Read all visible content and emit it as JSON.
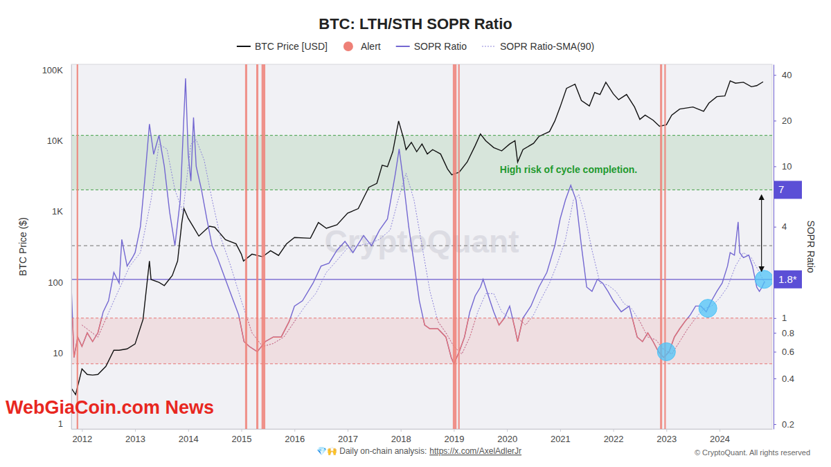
{
  "chart_data": {
    "type": "line",
    "title": "BTC: LTH/STH SOPR Ratio",
    "y_label": "BTC Price ($)",
    "y2_label": "SOPR Ratio",
    "log": "y",
    "grid": false,
    "legend": "top",
    "xlim": [
      2011.8,
      2024.99
    ],
    "xticks": [
      2012,
      2013,
      2014,
      2015,
      2016,
      2017,
      2018,
      2019,
      2020,
      2021,
      2022,
      2023,
      2024
    ],
    "ylim": [
      0.85,
      120000
    ],
    "yticks": [
      1,
      10,
      100,
      {
        "value": 1000,
        "label": "1K"
      },
      {
        "value": 10000,
        "label": "10K"
      },
      {
        "value": 100000,
        "label": "100K"
      }
    ],
    "y2lim": [
      0.186,
      47
    ],
    "y2ticks": [
      0.2,
      0.4,
      0.6,
      0.8,
      1,
      4,
      10,
      20,
      40
    ],
    "series": [
      {
        "name": "BTC Price [USD]",
        "type": "line",
        "color": "#111111",
        "x": [
          2011.8,
          2011.88,
          2011.95,
          2012.0,
          2012.1,
          2012.2,
          2012.3,
          2012.45,
          2012.6,
          2012.7,
          2012.85,
          2013.0,
          2013.15,
          2013.27,
          2013.3,
          2013.45,
          2013.55,
          2013.7,
          2013.8,
          2013.88,
          2013.92,
          2014.0,
          2014.1,
          2014.2,
          2014.4,
          2014.5,
          2014.7,
          2014.9,
          2015.0,
          2015.04,
          2015.2,
          2015.4,
          2015.55,
          2015.7,
          2015.85,
          2016.0,
          2016.3,
          2016.45,
          2016.6,
          2016.8,
          2017.0,
          2017.2,
          2017.4,
          2017.55,
          2017.65,
          2017.75,
          2017.85,
          2017.96,
          2018.05,
          2018.1,
          2018.2,
          2018.3,
          2018.4,
          2018.5,
          2018.6,
          2018.75,
          2018.88,
          2018.96,
          2019.1,
          2019.25,
          2019.4,
          2019.5,
          2019.6,
          2019.75,
          2019.9,
          2020.05,
          2020.15,
          2020.2,
          2020.3,
          2020.5,
          2020.6,
          2020.8,
          2020.9,
          2021.0,
          2021.12,
          2021.28,
          2021.4,
          2021.55,
          2021.65,
          2021.75,
          2021.86,
          2022.0,
          2022.1,
          2022.25,
          2022.4,
          2022.5,
          2022.6,
          2022.75,
          2022.87,
          2023.0,
          2023.1,
          2023.25,
          2023.5,
          2023.7,
          2023.8,
          2023.95,
          2024.1,
          2024.2,
          2024.3,
          2024.45,
          2024.6,
          2024.7,
          2024.82
        ],
        "values": [
          3.2,
          2.6,
          4.2,
          6,
          5,
          4.9,
          5,
          6.5,
          11,
          11,
          11.5,
          13.5,
          30,
          200,
          110,
          100,
          90,
          125,
          200,
          700,
          1100,
          800,
          600,
          450,
          620,
          600,
          400,
          350,
          250,
          200,
          250,
          230,
          280,
          240,
          350,
          430,
          420,
          700,
          580,
          650,
          950,
          1100,
          2200,
          2500,
          4500,
          4300,
          7000,
          19000,
          11000,
          7500,
          9500,
          7000,
          9000,
          6500,
          7500,
          6500,
          4000,
          3300,
          3600,
          5000,
          8500,
          12500,
          10000,
          8000,
          7200,
          9000,
          10000,
          5000,
          7500,
          9200,
          11500,
          13500,
          19000,
          30000,
          55000,
          63000,
          37000,
          31000,
          48000,
          45000,
          67000,
          46000,
          38000,
          45000,
          30000,
          20000,
          23000,
          19500,
          16000,
          16800,
          23000,
          28000,
          30000,
          26000,
          34000,
          42000,
          43000,
          70000,
          65000,
          67000,
          58000,
          60000,
          68000
        ]
      },
      {
        "name": "Alert",
        "type": "span",
        "color": "#ee8077",
        "marker": "circle",
        "spans": [
          [
            2011.9,
            2011.93
          ],
          [
            2015.07,
            2015.11
          ],
          [
            2015.28,
            2015.32
          ],
          [
            2015.38,
            2015.45
          ],
          [
            2018.98,
            2019.05
          ],
          [
            2019.08,
            2019.11
          ],
          [
            2022.88,
            2022.92
          ],
          [
            2022.96,
            2022.99
          ]
        ]
      },
      {
        "name": "SOPR Ratio",
        "type": "line",
        "color": "#7367d1",
        "axis": "y2",
        "x": [
          2011.8,
          2011.85,
          2011.92,
          2012.0,
          2012.1,
          2012.2,
          2012.3,
          2012.4,
          2012.5,
          2012.6,
          2012.7,
          2012.75,
          2012.85,
          2012.95,
          2013.0,
          2013.1,
          2013.18,
          2013.27,
          2013.35,
          2013.45,
          2013.55,
          2013.65,
          2013.75,
          2013.85,
          2013.95,
          2014.0,
          2014.05,
          2014.1,
          2014.15,
          2014.25,
          2014.35,
          2014.45,
          2014.55,
          2014.7,
          2014.85,
          2014.95,
          2015.05,
          2015.15,
          2015.3,
          2015.45,
          2015.6,
          2015.75,
          2015.9,
          2016.0,
          2016.15,
          2016.35,
          2016.5,
          2016.65,
          2016.8,
          2016.95,
          2017.1,
          2017.3,
          2017.45,
          2017.6,
          2017.75,
          2017.9,
          2017.97,
          2018.05,
          2018.15,
          2018.25,
          2018.35,
          2018.45,
          2018.55,
          2018.7,
          2018.85,
          2018.95,
          2019.0,
          2019.1,
          2019.2,
          2019.3,
          2019.4,
          2019.5,
          2019.55,
          2019.65,
          2019.75,
          2019.85,
          2019.95,
          2020.05,
          2020.15,
          2020.2,
          2020.3,
          2020.45,
          2020.6,
          2020.75,
          2020.9,
          2021.0,
          2021.1,
          2021.2,
          2021.3,
          2021.4,
          2021.5,
          2021.6,
          2021.7,
          2021.8,
          2021.9,
          2022.0,
          2022.15,
          2022.3,
          2022.45,
          2022.55,
          2022.65,
          2022.75,
          2022.85,
          2022.95,
          2023.05,
          2023.15,
          2023.25,
          2023.35,
          2023.45,
          2023.55,
          2023.65,
          2023.75,
          2023.85,
          2023.95,
          2024.05,
          2024.15,
          2024.2,
          2024.28,
          2024.35,
          2024.38,
          2024.45,
          2024.55,
          2024.62,
          2024.7,
          2024.75,
          2024.8,
          2024.85
        ],
        "values": [
          1.6,
          0.55,
          0.75,
          0.65,
          0.8,
          0.7,
          0.8,
          1.1,
          1.3,
          2.0,
          1.7,
          3.3,
          2.2,
          2.5,
          2.7,
          4.0,
          8,
          19,
          12,
          16,
          10,
          5,
          3,
          6,
          38,
          12,
          8,
          21,
          10,
          7,
          4.5,
          3,
          2.5,
          1.8,
          1.3,
          1.05,
          0.7,
          0.65,
          0.6,
          0.7,
          0.75,
          0.75,
          0.95,
          1.2,
          1.3,
          1.7,
          2.2,
          2.3,
          2.8,
          3.2,
          2.7,
          3.5,
          3.0,
          3.8,
          4.5,
          9,
          13,
          8,
          4,
          2.3,
          1.3,
          0.9,
          0.85,
          0.85,
          0.75,
          0.55,
          0.5,
          0.6,
          0.75,
          1.1,
          1.4,
          1.6,
          1.8,
          1.4,
          1.1,
          0.9,
          1.0,
          1.2,
          0.85,
          0.7,
          1.0,
          1.2,
          1.6,
          2.0,
          3.0,
          4.5,
          6,
          7.5,
          6,
          3,
          1.6,
          1.5,
          1.8,
          1.7,
          1.5,
          1.3,
          1.1,
          1.2,
          0.75,
          0.7,
          0.8,
          0.7,
          0.6,
          0.55,
          0.6,
          0.75,
          0.85,
          0.95,
          1.05,
          1.2,
          1.2,
          1.1,
          1.3,
          1.5,
          1.7,
          2.2,
          2.7,
          2.6,
          4.3,
          2.7,
          2.5,
          2.6,
          2.2,
          1.6,
          1.5,
          1.6,
          1.75
        ]
      },
      {
        "name": "SOPR Ratio-SMA(90)",
        "type": "line",
        "color": "#8b82d9",
        "line_style": "dotted",
        "axis": "y2",
        "x": [
          2012.0,
          2012.3,
          2012.6,
          2012.9,
          2013.1,
          2013.3,
          2013.45,
          2013.6,
          2013.75,
          2013.9,
          2014.05,
          2014.15,
          2014.3,
          2014.45,
          2014.6,
          2014.8,
          2015.0,
          2015.2,
          2015.4,
          2015.6,
          2015.8,
          2016.0,
          2016.2,
          2016.4,
          2016.6,
          2016.8,
          2017.0,
          2017.2,
          2017.4,
          2017.6,
          2017.8,
          2017.95,
          2018.1,
          2018.25,
          2018.4,
          2018.55,
          2018.7,
          2018.85,
          2019.0,
          2019.15,
          2019.3,
          2019.45,
          2019.6,
          2019.75,
          2019.9,
          2020.05,
          2020.2,
          2020.35,
          2020.5,
          2020.65,
          2020.8,
          2020.95,
          2021.1,
          2021.25,
          2021.35,
          2021.45,
          2021.6,
          2021.75,
          2021.9,
          2022.05,
          2022.2,
          2022.35,
          2022.5,
          2022.65,
          2022.8,
          2022.95,
          2023.1,
          2023.25,
          2023.4,
          2023.55,
          2023.7,
          2023.85,
          2024.0,
          2024.15,
          2024.3,
          2024.45,
          2024.6,
          2024.75,
          2024.85
        ],
        "values": [
          0.9,
          0.75,
          1.3,
          2.2,
          2.7,
          6,
          14,
          13,
          7,
          5,
          14,
          15,
          11,
          6,
          3.5,
          2.2,
          1.3,
          0.8,
          0.65,
          0.68,
          0.75,
          0.95,
          1.2,
          1.45,
          2.0,
          2.4,
          2.9,
          3.0,
          3.1,
          3.3,
          3.8,
          6,
          9,
          6,
          3,
          1.5,
          0.95,
          0.8,
          0.65,
          0.58,
          0.75,
          1.1,
          1.45,
          1.45,
          1.1,
          1.0,
          1.0,
          0.9,
          1.05,
          1.35,
          1.7,
          2.3,
          3.3,
          6,
          6.5,
          5,
          2.8,
          1.7,
          1.65,
          1.5,
          1.25,
          1.15,
          0.95,
          0.75,
          0.72,
          0.62,
          0.58,
          0.7,
          0.85,
          1.0,
          1.15,
          1.2,
          1.35,
          1.6,
          2.2,
          2.7,
          2.5,
          2.0,
          1.7
        ]
      },
      {
        "type": "scatter",
        "color": "#4fc3f7",
        "marker": "circle",
        "axis": "y2",
        "x": [
          2023.0,
          2023.78,
          2024.84
        ],
        "values": [
          0.6,
          1.16,
          1.8
        ]
      }
    ],
    "bands": [
      {
        "from": 0.5,
        "to": 1,
        "color": "#e57373",
        "axis": "y2"
      },
      {
        "from": 7,
        "to": 16,
        "color": "#43a047",
        "axis": "y2"
      }
    ],
    "hlines": [
      {
        "value": 3,
        "color": "#8a8a8a",
        "line_style": "dashed",
        "axis": "y2"
      },
      {
        "value": 1.8,
        "color": "#6a5acd",
        "line_style": "solid",
        "axis": "y2"
      }
    ],
    "axis_labels": [
      {
        "value": 7,
        "label": "7",
        "color": "#5b4fd6"
      },
      {
        "value": 1.8,
        "label": "1.8*",
        "color": "#5b4fd6"
      }
    ],
    "arrow": {
      "x": 2024.79,
      "from": 1.8,
      "to": 7,
      "axis": "y2"
    },
    "annotations": [
      {
        "text": "High risk of cycle completion.",
        "color": "#1f9a2e"
      }
    ],
    "watermark": "CryptoQuant",
    "footer": {
      "text": "💎🙌 Daily on-chain analysis:",
      "link": "https://x.com/AxelAdlerJr"
    },
    "copyright": "© CryptoQuant. All rights reserved",
    "overlay": {
      "text": "WebGiaCoin.com News",
      "color": "#e8271f"
    }
  }
}
